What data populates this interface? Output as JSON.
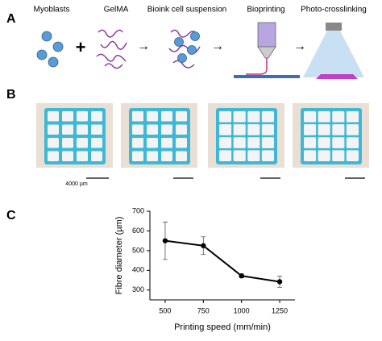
{
  "panel_labels": [
    "A",
    "B",
    "C"
  ],
  "schematic": {
    "steps": [
      "Myoblasts",
      "GelMA",
      "Bioink cell suspension",
      "Bioprinting",
      "Photo-crosslinking"
    ]
  },
  "scale_bar_label": "4000 µm",
  "chart_data": {
    "type": "line",
    "x": [
      500,
      750,
      1000,
      1250
    ],
    "values": [
      550,
      525,
      372,
      342
    ],
    "errors": [
      95,
      45,
      10,
      28
    ],
    "color": "#000000",
    "xlabel": "Printing speed (mm/min)",
    "ylabel": "Fibre diameter (µm)",
    "xlim": [
      400,
      1350
    ],
    "ylim": [
      250,
      700
    ],
    "xticks": [
      500,
      750,
      1000,
      1250
    ],
    "yticks": [
      300,
      400,
      500,
      600,
      700
    ]
  }
}
